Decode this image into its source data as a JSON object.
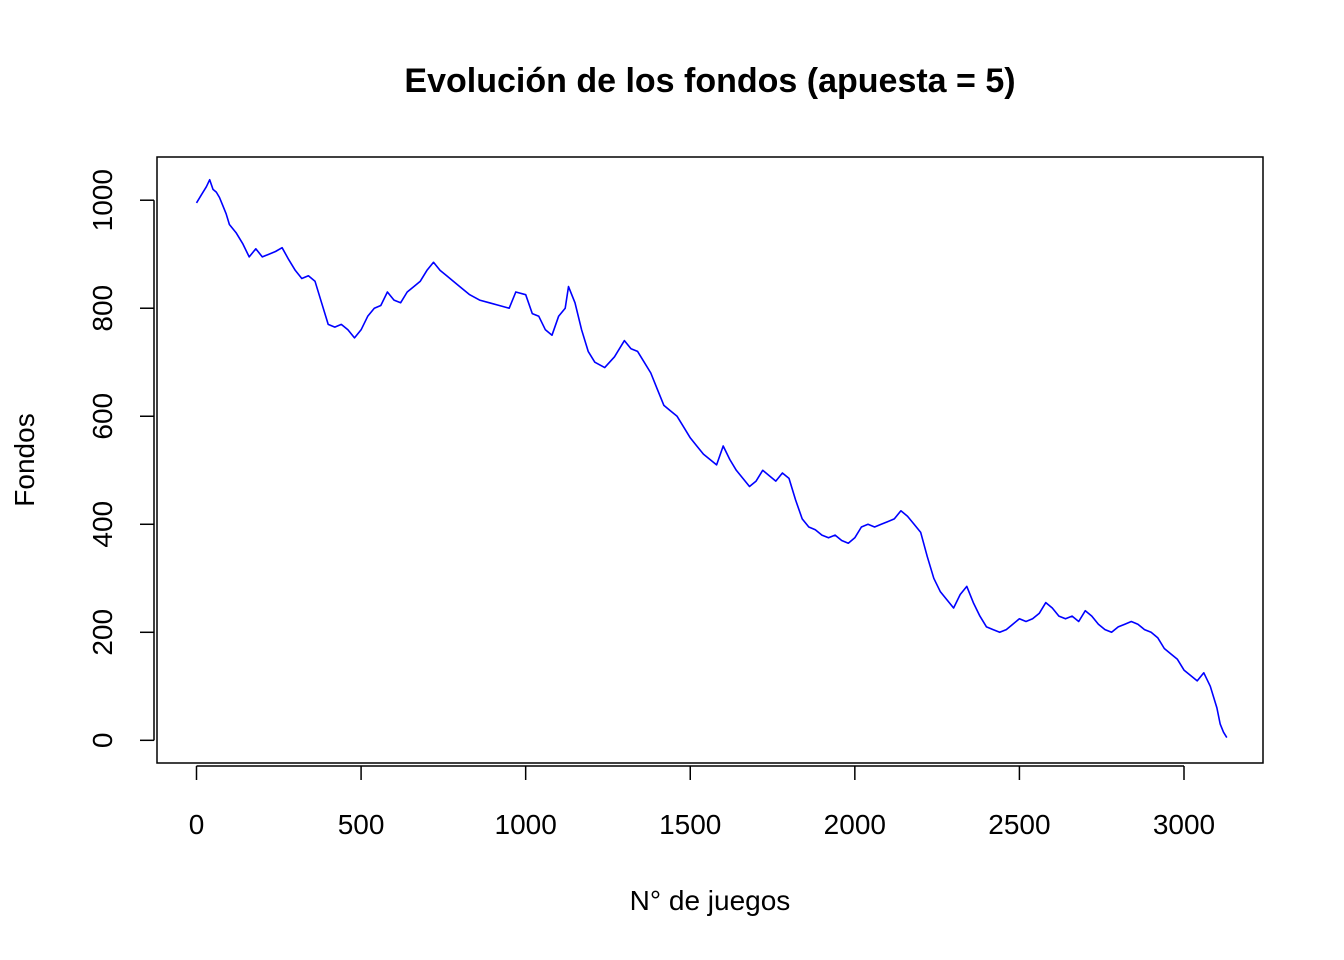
{
  "chart_data": {
    "type": "line",
    "title": "Evolución de los fondos (apuesta = 5)",
    "xlabel": "N° de juegos",
    "ylabel": "Fondos",
    "xlim": [
      -120,
      3240
    ],
    "ylim": [
      -42,
      1080
    ],
    "x_ticks": [
      0,
      500,
      1000,
      1500,
      2000,
      2500,
      3000
    ],
    "y_ticks": [
      0,
      200,
      400,
      600,
      800,
      1000
    ],
    "x_tick_labels": [
      "0",
      "500",
      "1000",
      "1500",
      "2000",
      "2500",
      "3000"
    ],
    "y_tick_labels": [
      "0",
      "200",
      "400",
      "600",
      "800",
      "1000"
    ],
    "grid": false,
    "legend": "none",
    "line_color": "#0000ff",
    "series": [
      {
        "x": [
          0,
          15,
          30,
          40,
          50,
          60,
          70,
          80,
          90,
          100,
          120,
          140,
          160,
          180,
          200,
          220,
          240,
          260,
          280,
          300,
          320,
          340,
          360,
          380,
          400,
          420,
          440,
          460,
          480,
          500,
          520,
          540,
          560,
          580,
          600,
          620,
          640,
          660,
          680,
          700,
          720,
          740,
          760,
          780,
          800,
          830,
          860,
          890,
          920,
          950,
          970,
          1000,
          1020,
          1040,
          1060,
          1080,
          1100,
          1120,
          1130,
          1150,
          1170,
          1190,
          1210,
          1240,
          1270,
          1300,
          1320,
          1340,
          1360,
          1380,
          1400,
          1420,
          1440,
          1460,
          1480,
          1500,
          1520,
          1540,
          1560,
          1580,
          1600,
          1620,
          1640,
          1660,
          1680,
          1700,
          1720,
          1740,
          1760,
          1780,
          1800,
          1820,
          1840,
          1860,
          1880,
          1900,
          1920,
          1940,
          1960,
          1980,
          2000,
          2020,
          2040,
          2060,
          2080,
          2100,
          2120,
          2140,
          2160,
          2180,
          2200,
          2220,
          2240,
          2260,
          2280,
          2300,
          2320,
          2340,
          2360,
          2380,
          2400,
          2420,
          2440,
          2460,
          2480,
          2500,
          2520,
          2540,
          2560,
          2580,
          2600,
          2620,
          2640,
          2660,
          2680,
          2700,
          2720,
          2740,
          2760,
          2780,
          2800,
          2820,
          2840,
          2860,
          2880,
          2900,
          2920,
          2940,
          2960,
          2980,
          3000,
          3020,
          3040,
          3060,
          3080,
          3100,
          3110,
          3120,
          3130
        ],
        "values": [
          995,
          1010,
          1025,
          1038,
          1020,
          1015,
          1005,
          990,
          975,
          955,
          940,
          920,
          895,
          910,
          895,
          900,
          905,
          912,
          890,
          870,
          855,
          860,
          850,
          810,
          770,
          765,
          770,
          760,
          745,
          760,
          785,
          800,
          805,
          830,
          815,
          810,
          830,
          840,
          850,
          870,
          885,
          870,
          860,
          850,
          840,
          825,
          815,
          810,
          805,
          800,
          830,
          825,
          790,
          785,
          760,
          750,
          785,
          800,
          840,
          810,
          760,
          720,
          700,
          690,
          710,
          740,
          725,
          720,
          700,
          680,
          650,
          620,
          610,
          600,
          580,
          560,
          545,
          530,
          520,
          510,
          545,
          520,
          500,
          485,
          470,
          480,
          500,
          490,
          480,
          495,
          485,
          445,
          410,
          395,
          390,
          380,
          375,
          380,
          370,
          365,
          375,
          395,
          400,
          395,
          400,
          405,
          410,
          425,
          415,
          400,
          385,
          340,
          300,
          275,
          260,
          245,
          270,
          285,
          255,
          230,
          210,
          205,
          200,
          205,
          215,
          225,
          220,
          225,
          235,
          255,
          245,
          230,
          225,
          230,
          220,
          240,
          230,
          215,
          205,
          200,
          210,
          215,
          220,
          215,
          205,
          200,
          190,
          170,
          160,
          150,
          130,
          120,
          110,
          125,
          100,
          60,
          30,
          15,
          5
        ]
      }
    ]
  }
}
